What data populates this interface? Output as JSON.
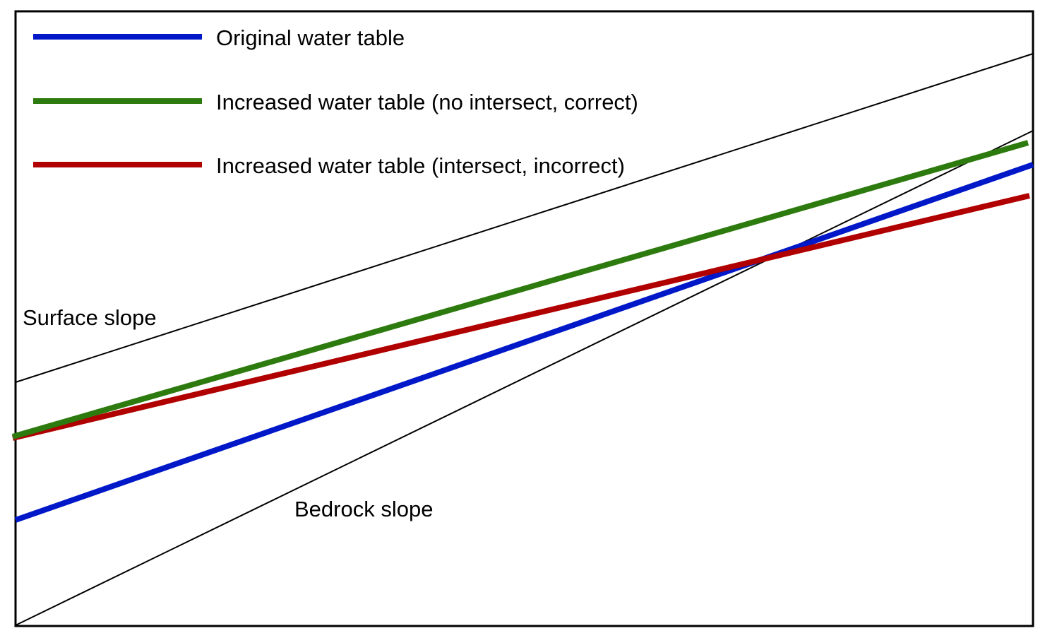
{
  "legend": {
    "items": [
      {
        "label": "Original water table",
        "color": "#0018C8"
      },
      {
        "label": "Increased water table (no intersect, correct)",
        "color": "#2D7A0E"
      },
      {
        "label": "Increased water table (intersect, incorrect)",
        "color": "#B00000"
      }
    ]
  },
  "labels": {
    "surface": "Surface slope",
    "bedrock": "Bedrock slope"
  },
  "lines": {
    "surface_color": "#000000",
    "bedrock_color": "#000000"
  }
}
